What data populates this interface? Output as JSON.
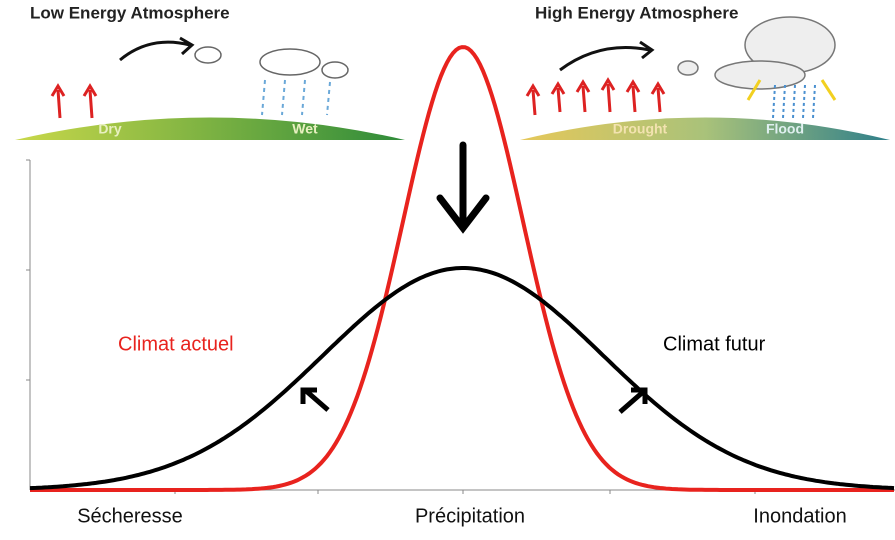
{
  "header": {
    "left_title": "Low Energy Atmosphere",
    "right_title": "High Energy Atmosphere"
  },
  "left_panel": {
    "dry": "Dry",
    "wet": "Wet"
  },
  "right_panel": {
    "drought": "Drought",
    "flood": "Flood"
  },
  "curves": {
    "current": "Climat actuel",
    "future": "Climat futur"
  },
  "axis": {
    "left": "Sécheresse",
    "center": "Précipitation",
    "right": "Inondation"
  }
}
